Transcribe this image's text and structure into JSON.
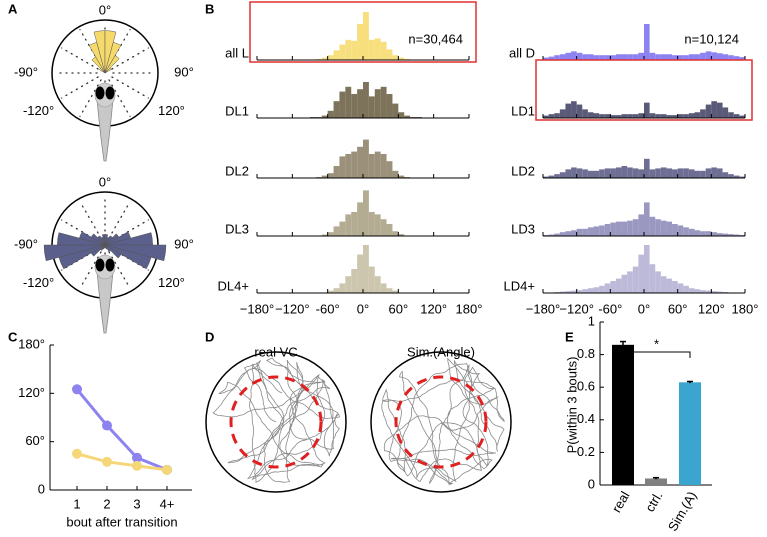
{
  "chart_data": [
    {
      "type": "polar",
      "panel": "A",
      "bins": [
        -180,
        -165,
        -150,
        -135,
        -120,
        -105,
        -90,
        -75,
        -60,
        -45,
        -30,
        -15,
        0,
        15,
        30,
        45,
        60,
        75,
        90,
        105,
        120,
        135,
        150,
        165,
        180
      ],
      "rlim": [
        0,
        1
      ],
      "thetaticks": [
        {
          "value": 0,
          "label": "0°"
        },
        {
          "value": -90,
          "label": "-90°"
        },
        {
          "value": 90,
          "label": "90°"
        },
        {
          "value": -120,
          "label": "-120°"
        },
        {
          "value": 120,
          "label": "120°"
        }
      ],
      "roses": [
        {
          "color": "#f5d96b",
          "values": [
            0,
            0,
            0,
            0,
            0,
            0,
            0,
            0,
            0.12,
            0.35,
            0.6,
            0.8,
            0.8,
            0.6,
            0.38,
            0.14,
            0.02,
            0,
            0,
            0,
            0,
            0,
            0,
            0
          ]
        },
        {
          "color": "#5a5f8c",
          "values": [
            0.05,
            0.08,
            0.12,
            0.3,
            0.9,
            1.15,
            0.9,
            0.5,
            0.3,
            0.2,
            0.15,
            0.2,
            0.2,
            0.15,
            0.2,
            0.3,
            0.5,
            0.9,
            1.15,
            0.9,
            0.35,
            0.15,
            0.08,
            0.05
          ]
        }
      ]
    },
    {
      "type": "histogram",
      "panel": "B",
      "bins": [
        -180,
        -170,
        -160,
        -150,
        -140,
        -130,
        -120,
        -110,
        -100,
        -90,
        -80,
        -70,
        -60,
        -50,
        -40,
        -30,
        -20,
        -10,
        0,
        10,
        20,
        30,
        40,
        50,
        60,
        70,
        80,
        90,
        100,
        110,
        120,
        130,
        140,
        150,
        160,
        170,
        180
      ],
      "xlim": [
        -180,
        180
      ],
      "ylim": [
        0,
        1
      ],
      "xticks": [
        {
          "value": -180,
          "label": "−180°"
        },
        {
          "value": -120,
          "label": "−120°"
        },
        {
          "value": -60,
          "label": "-60°"
        },
        {
          "value": 0,
          "label": "0°"
        },
        {
          "value": 60,
          "label": "60°"
        },
        {
          "value": 120,
          "label": "120°"
        },
        {
          "value": 180,
          "label": "180°"
        }
      ],
      "series": [
        {
          "name": "all L",
          "color": "#f7df7e",
          "label": "n=30,464",
          "highlight": true,
          "values": [
            0,
            0,
            0,
            0,
            0,
            0,
            0,
            0,
            0,
            0,
            0.02,
            0.05,
            0.1,
            0.2,
            0.32,
            0.42,
            0.4,
            0.75,
            1.0,
            0.42,
            0.45,
            0.38,
            0.22,
            0.1,
            0.05,
            0.02,
            0,
            0,
            0,
            0,
            0,
            0,
            0,
            0,
            0,
            0
          ]
        },
        {
          "name": "DL1",
          "color": "#7d735a",
          "values": [
            0,
            0,
            0,
            0,
            0,
            0,
            0,
            0,
            0,
            0.02,
            0.02,
            0.05,
            0.15,
            0.35,
            0.55,
            0.65,
            0.5,
            0.6,
            0.75,
            0.45,
            0.6,
            0.65,
            0.5,
            0.3,
            0.12,
            0.05,
            0.02,
            0.02,
            0,
            0,
            0,
            0,
            0,
            0,
            0,
            0
          ]
        },
        {
          "name": "DL2",
          "color": "#9b917a",
          "values": [
            0,
            0,
            0,
            0,
            0,
            0,
            0,
            0,
            0,
            0,
            0.02,
            0.05,
            0.1,
            0.25,
            0.45,
            0.5,
            0.55,
            0.65,
            0.8,
            0.5,
            0.55,
            0.5,
            0.35,
            0.15,
            0.05,
            0.02,
            0,
            0,
            0,
            0,
            0,
            0,
            0,
            0,
            0,
            0
          ]
        },
        {
          "name": "DL3",
          "color": "#b4ab93",
          "values": [
            0,
            0,
            0,
            0,
            0,
            0,
            0,
            0,
            0,
            0,
            0,
            0.03,
            0.08,
            0.2,
            0.3,
            0.45,
            0.5,
            0.7,
            0.95,
            0.5,
            0.45,
            0.35,
            0.25,
            0.1,
            0.04,
            0,
            0,
            0,
            0,
            0,
            0,
            0,
            0,
            0,
            0,
            0
          ]
        },
        {
          "name": "DL4+",
          "color": "#cdc6af",
          "values": [
            0,
            0,
            0,
            0,
            0,
            0,
            0,
            0,
            0,
            0,
            0,
            0,
            0.05,
            0.1,
            0.2,
            0.35,
            0.5,
            0.8,
            1.0,
            0.55,
            0.35,
            0.2,
            0.1,
            0.05,
            0,
            0,
            0,
            0,
            0,
            0,
            0,
            0,
            0,
            0,
            0,
            0
          ]
        },
        {
          "name": "all D",
          "color": "#8c82f0",
          "label": "n=10,124",
          "values": [
            0.05,
            0.07,
            0.1,
            0.12,
            0.15,
            0.18,
            0.15,
            0.12,
            0.12,
            0.1,
            0.1,
            0.1,
            0.1,
            0.12,
            0.12,
            0.12,
            0.12,
            0.15,
            0.75,
            0.15,
            0.12,
            0.12,
            0.12,
            0.1,
            0.1,
            0.1,
            0.12,
            0.12,
            0.15,
            0.18,
            0.16,
            0.14,
            0.12,
            0.1,
            0.08,
            0.06
          ]
        },
        {
          "name": "LD1",
          "color": "#5a5a78",
          "highlight": true,
          "values": [
            0.05,
            0.08,
            0.1,
            0.18,
            0.3,
            0.35,
            0.28,
            0.18,
            0.12,
            0.1,
            0.08,
            0.08,
            0.06,
            0.06,
            0.08,
            0.08,
            0.08,
            0.1,
            0.32,
            0.1,
            0.08,
            0.08,
            0.06,
            0.06,
            0.08,
            0.08,
            0.1,
            0.12,
            0.18,
            0.28,
            0.35,
            0.32,
            0.22,
            0.12,
            0.08,
            0.05
          ]
        },
        {
          "name": "LD2",
          "color": "#6e6e94",
          "values": [
            0.03,
            0.05,
            0.08,
            0.12,
            0.18,
            0.22,
            0.2,
            0.18,
            0.15,
            0.15,
            0.18,
            0.2,
            0.2,
            0.22,
            0.25,
            0.22,
            0.2,
            0.18,
            0.4,
            0.18,
            0.2,
            0.22,
            0.2,
            0.18,
            0.2,
            0.2,
            0.18,
            0.15,
            0.15,
            0.2,
            0.22,
            0.2,
            0.12,
            0.08,
            0.05,
            0.03
          ]
        },
        {
          "name": "LD3",
          "color": "#9a98c0",
          "values": [
            0.02,
            0.03,
            0.05,
            0.08,
            0.1,
            0.12,
            0.15,
            0.15,
            0.18,
            0.2,
            0.22,
            0.25,
            0.28,
            0.3,
            0.3,
            0.32,
            0.35,
            0.45,
            0.7,
            0.4,
            0.35,
            0.32,
            0.3,
            0.25,
            0.22,
            0.18,
            0.15,
            0.12,
            0.1,
            0.1,
            0.08,
            0.06,
            0.05,
            0.04,
            0.03,
            0.02
          ]
        },
        {
          "name": "LD4+",
          "color": "#bcbad8",
          "values": [
            0,
            0.01,
            0.02,
            0.03,
            0.04,
            0.05,
            0.06,
            0.08,
            0.1,
            0.12,
            0.15,
            0.2,
            0.25,
            0.3,
            0.38,
            0.45,
            0.55,
            0.8,
            1.0,
            0.6,
            0.45,
            0.35,
            0.3,
            0.25,
            0.2,
            0.15,
            0.1,
            0.08,
            0.06,
            0.05,
            0.04,
            0.03,
            0.02,
            0.01,
            0.01,
            0
          ]
        }
      ]
    },
    {
      "type": "line",
      "panel": "C",
      "categories": [
        "1",
        "2",
        "3",
        "4+"
      ],
      "xlabel": "bout after transition",
      "ylim": [
        0,
        180
      ],
      "yticks": [
        0,
        {
          "value": 60,
          "label": "60°"
        },
        {
          "value": 120,
          "label": "120°"
        },
        {
          "value": 180,
          "label": "180°"
        }
      ],
      "series": [
        {
          "color": "#8c82f0",
          "values": [
            125,
            80,
            40,
            25
          ]
        },
        {
          "color": "#f5d77a",
          "values": [
            45,
            35,
            30,
            25
          ]
        }
      ]
    },
    {
      "type": "trajectories",
      "panel": "D",
      "titles": [
        "real VC",
        "Sim.(Angle)"
      ],
      "title_colors": [
        "#000000",
        "#3a9cc0"
      ]
    },
    {
      "type": "bar",
      "panel": "E",
      "ylabel": "P(within 3 bouts)",
      "categories": [
        "real",
        "ctrl.",
        "Sim.(A)"
      ],
      "values": [
        0.86,
        0.04,
        0.63
      ],
      "errors": [
        0.02,
        0.005,
        0.005
      ],
      "colors": [
        "#000000",
        "#808080",
        "#3aa6d0"
      ],
      "ylim": [
        0,
        1
      ],
      "yticks": [
        0,
        0.2,
        0.4,
        0.6,
        0.8,
        1
      ],
      "annotation": "*"
    }
  ]
}
